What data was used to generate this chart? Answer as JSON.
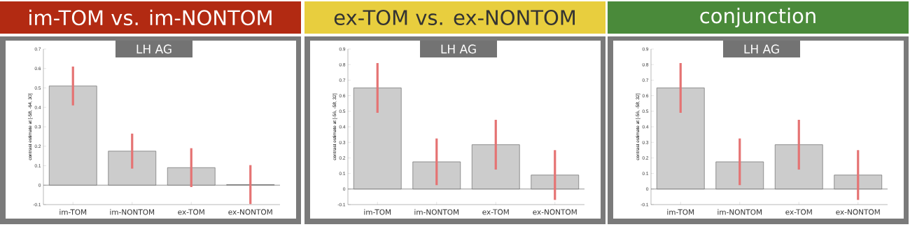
{
  "chart_data": [
    {
      "type": "bar",
      "title": "im-TOM vs. im-NONTOM",
      "subtitle": "LH AG",
      "ylabel": "contrast estimate at [-58, -64, 30]",
      "categories": [
        "im-TOM",
        "im-NONTOM",
        "ex-TOM",
        "ex-NONTOM"
      ],
      "values": [
        0.51,
        0.175,
        0.09,
        0.003
      ],
      "errors": [
        0.1,
        0.09,
        0.1,
        0.1
      ],
      "color": "#cccccc",
      "ylim": [
        -0.1,
        0.7
      ],
      "yticks": [
        -0.1,
        0,
        0.1,
        0.2,
        0.3,
        0.4,
        0.5,
        0.6,
        0.7
      ],
      "ref_lines": [
        {
          "axis": "y",
          "value": 0
        }
      ]
    },
    {
      "type": "bar",
      "title": "ex-TOM vs. ex-NONTOM",
      "subtitle": "LH AG",
      "ylabel": "contrast estimate at [-56, -58, 32]",
      "categories": [
        "im-TOM",
        "im-NONTOM",
        "ex-TOM",
        "ex-NONTOM"
      ],
      "values": [
        0.65,
        0.175,
        0.285,
        0.09
      ],
      "errors": [
        0.16,
        0.15,
        0.16,
        0.16
      ],
      "color": "#cccccc",
      "ylim": [
        -0.1,
        0.9
      ],
      "yticks": [
        -0.1,
        0,
        0.1,
        0.2,
        0.3,
        0.4,
        0.5,
        0.6,
        0.7,
        0.8,
        0.9
      ],
      "ref_lines": [
        {
          "axis": "y",
          "value": 0
        }
      ]
    },
    {
      "type": "bar",
      "title": "conjunction",
      "subtitle": "LH AG",
      "ylabel": "contrast estimate at [-56, -58, 32]",
      "categories": [
        "im-TOM",
        "im-NONTOM",
        "ex-TOM",
        "ex-NONTOM"
      ],
      "values": [
        0.65,
        0.175,
        0.285,
        0.09
      ],
      "errors": [
        0.16,
        0.15,
        0.16,
        0.16
      ],
      "color": "#cccccc",
      "ylim": [
        -0.1,
        0.9
      ],
      "yticks": [
        -0.1,
        0,
        0.1,
        0.2,
        0.3,
        0.4,
        0.5,
        0.6,
        0.7,
        0.8,
        0.9
      ],
      "ref_lines": [
        {
          "axis": "y",
          "value": 0
        }
      ]
    }
  ]
}
